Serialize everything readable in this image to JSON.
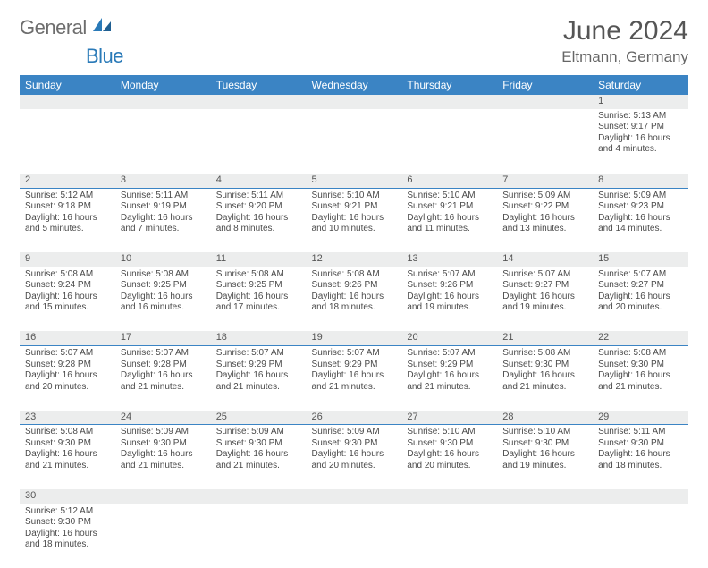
{
  "logo": {
    "text_gray": "General",
    "text_blue": "Blue",
    "gray": "#6d6d6d",
    "blue": "#2a7ab8"
  },
  "title": "June 2024",
  "location": "Eltmann, Germany",
  "colors": {
    "header_bg": "#3b84c4",
    "header_fg": "#ffffff",
    "daynum_bg": "#eceded",
    "border": "#3b84c4",
    "text": "#4a4a4a"
  },
  "weekdays": [
    "Sunday",
    "Monday",
    "Tuesday",
    "Wednesday",
    "Thursday",
    "Friday",
    "Saturday"
  ],
  "weeks": [
    [
      null,
      null,
      null,
      null,
      null,
      null,
      {
        "n": "1",
        "sr": "Sunrise: 5:13 AM",
        "ss": "Sunset: 9:17 PM",
        "d1": "Daylight: 16 hours",
        "d2": "and 4 minutes."
      }
    ],
    [
      {
        "n": "2",
        "sr": "Sunrise: 5:12 AM",
        "ss": "Sunset: 9:18 PM",
        "d1": "Daylight: 16 hours",
        "d2": "and 5 minutes."
      },
      {
        "n": "3",
        "sr": "Sunrise: 5:11 AM",
        "ss": "Sunset: 9:19 PM",
        "d1": "Daylight: 16 hours",
        "d2": "and 7 minutes."
      },
      {
        "n": "4",
        "sr": "Sunrise: 5:11 AM",
        "ss": "Sunset: 9:20 PM",
        "d1": "Daylight: 16 hours",
        "d2": "and 8 minutes."
      },
      {
        "n": "5",
        "sr": "Sunrise: 5:10 AM",
        "ss": "Sunset: 9:21 PM",
        "d1": "Daylight: 16 hours",
        "d2": "and 10 minutes."
      },
      {
        "n": "6",
        "sr": "Sunrise: 5:10 AM",
        "ss": "Sunset: 9:21 PM",
        "d1": "Daylight: 16 hours",
        "d2": "and 11 minutes."
      },
      {
        "n": "7",
        "sr": "Sunrise: 5:09 AM",
        "ss": "Sunset: 9:22 PM",
        "d1": "Daylight: 16 hours",
        "d2": "and 13 minutes."
      },
      {
        "n": "8",
        "sr": "Sunrise: 5:09 AM",
        "ss": "Sunset: 9:23 PM",
        "d1": "Daylight: 16 hours",
        "d2": "and 14 minutes."
      }
    ],
    [
      {
        "n": "9",
        "sr": "Sunrise: 5:08 AM",
        "ss": "Sunset: 9:24 PM",
        "d1": "Daylight: 16 hours",
        "d2": "and 15 minutes."
      },
      {
        "n": "10",
        "sr": "Sunrise: 5:08 AM",
        "ss": "Sunset: 9:25 PM",
        "d1": "Daylight: 16 hours",
        "d2": "and 16 minutes."
      },
      {
        "n": "11",
        "sr": "Sunrise: 5:08 AM",
        "ss": "Sunset: 9:25 PM",
        "d1": "Daylight: 16 hours",
        "d2": "and 17 minutes."
      },
      {
        "n": "12",
        "sr": "Sunrise: 5:08 AM",
        "ss": "Sunset: 9:26 PM",
        "d1": "Daylight: 16 hours",
        "d2": "and 18 minutes."
      },
      {
        "n": "13",
        "sr": "Sunrise: 5:07 AM",
        "ss": "Sunset: 9:26 PM",
        "d1": "Daylight: 16 hours",
        "d2": "and 19 minutes."
      },
      {
        "n": "14",
        "sr": "Sunrise: 5:07 AM",
        "ss": "Sunset: 9:27 PM",
        "d1": "Daylight: 16 hours",
        "d2": "and 19 minutes."
      },
      {
        "n": "15",
        "sr": "Sunrise: 5:07 AM",
        "ss": "Sunset: 9:27 PM",
        "d1": "Daylight: 16 hours",
        "d2": "and 20 minutes."
      }
    ],
    [
      {
        "n": "16",
        "sr": "Sunrise: 5:07 AM",
        "ss": "Sunset: 9:28 PM",
        "d1": "Daylight: 16 hours",
        "d2": "and 20 minutes."
      },
      {
        "n": "17",
        "sr": "Sunrise: 5:07 AM",
        "ss": "Sunset: 9:28 PM",
        "d1": "Daylight: 16 hours",
        "d2": "and 21 minutes."
      },
      {
        "n": "18",
        "sr": "Sunrise: 5:07 AM",
        "ss": "Sunset: 9:29 PM",
        "d1": "Daylight: 16 hours",
        "d2": "and 21 minutes."
      },
      {
        "n": "19",
        "sr": "Sunrise: 5:07 AM",
        "ss": "Sunset: 9:29 PM",
        "d1": "Daylight: 16 hours",
        "d2": "and 21 minutes."
      },
      {
        "n": "20",
        "sr": "Sunrise: 5:07 AM",
        "ss": "Sunset: 9:29 PM",
        "d1": "Daylight: 16 hours",
        "d2": "and 21 minutes."
      },
      {
        "n": "21",
        "sr": "Sunrise: 5:08 AM",
        "ss": "Sunset: 9:30 PM",
        "d1": "Daylight: 16 hours",
        "d2": "and 21 minutes."
      },
      {
        "n": "22",
        "sr": "Sunrise: 5:08 AM",
        "ss": "Sunset: 9:30 PM",
        "d1": "Daylight: 16 hours",
        "d2": "and 21 minutes."
      }
    ],
    [
      {
        "n": "23",
        "sr": "Sunrise: 5:08 AM",
        "ss": "Sunset: 9:30 PM",
        "d1": "Daylight: 16 hours",
        "d2": "and 21 minutes."
      },
      {
        "n": "24",
        "sr": "Sunrise: 5:09 AM",
        "ss": "Sunset: 9:30 PM",
        "d1": "Daylight: 16 hours",
        "d2": "and 21 minutes."
      },
      {
        "n": "25",
        "sr": "Sunrise: 5:09 AM",
        "ss": "Sunset: 9:30 PM",
        "d1": "Daylight: 16 hours",
        "d2": "and 21 minutes."
      },
      {
        "n": "26",
        "sr": "Sunrise: 5:09 AM",
        "ss": "Sunset: 9:30 PM",
        "d1": "Daylight: 16 hours",
        "d2": "and 20 minutes."
      },
      {
        "n": "27",
        "sr": "Sunrise: 5:10 AM",
        "ss": "Sunset: 9:30 PM",
        "d1": "Daylight: 16 hours",
        "d2": "and 20 minutes."
      },
      {
        "n": "28",
        "sr": "Sunrise: 5:10 AM",
        "ss": "Sunset: 9:30 PM",
        "d1": "Daylight: 16 hours",
        "d2": "and 19 minutes."
      },
      {
        "n": "29",
        "sr": "Sunrise: 5:11 AM",
        "ss": "Sunset: 9:30 PM",
        "d1": "Daylight: 16 hours",
        "d2": "and 18 minutes."
      }
    ],
    [
      {
        "n": "30",
        "sr": "Sunrise: 5:12 AM",
        "ss": "Sunset: 9:30 PM",
        "d1": "Daylight: 16 hours",
        "d2": "and 18 minutes."
      },
      null,
      null,
      null,
      null,
      null,
      null
    ]
  ]
}
